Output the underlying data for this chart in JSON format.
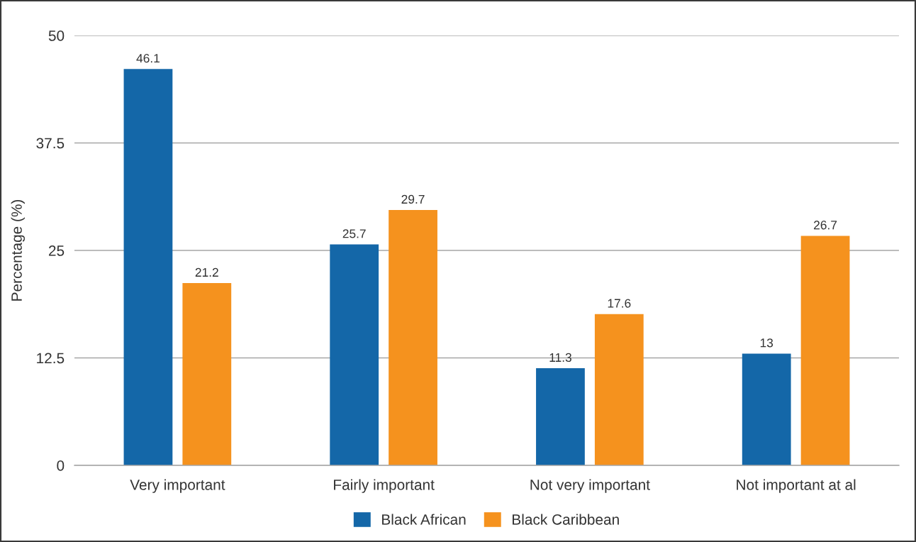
{
  "chart_data": {
    "type": "bar",
    "ylabel": "Percentage (%)",
    "categories": [
      "Very important",
      "Fairly important",
      "Not very important",
      "Not important at al"
    ],
    "series": [
      {
        "name": "Black African",
        "color": "#1467a8",
        "values": [
          46.1,
          25.7,
          11.3,
          13
        ]
      },
      {
        "name": "Black Caribbean",
        "color": "#f5921e",
        "values": [
          21.2,
          29.7,
          17.6,
          26.7
        ]
      }
    ],
    "ylim": [
      0,
      50
    ],
    "yticks": [
      0,
      12.5,
      25,
      37.5,
      50
    ],
    "grid": "y",
    "legend": "bottom",
    "data_labels": true
  }
}
